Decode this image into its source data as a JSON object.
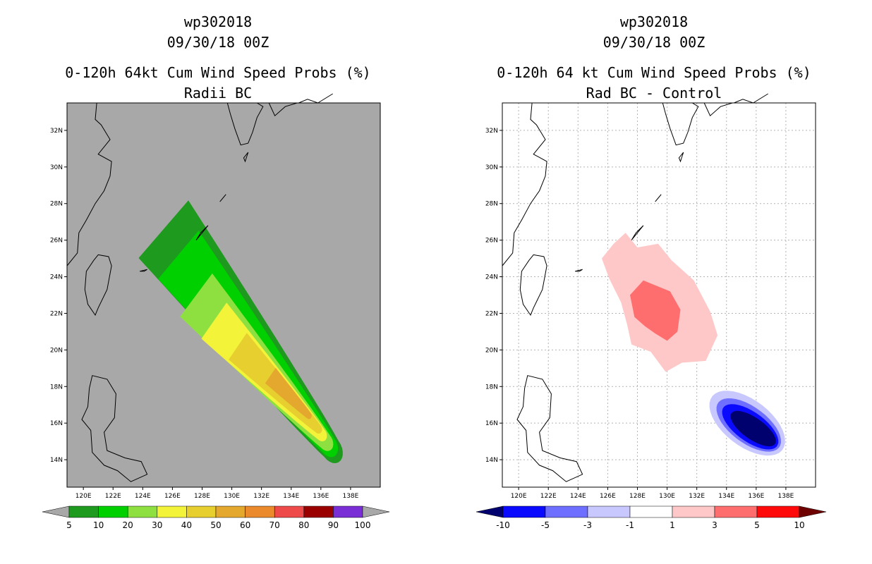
{
  "chart_data": [
    {
      "type": "filled-contour-map",
      "storm_id": "wp302018",
      "datetime": "09/30/18 00Z",
      "title": "0-120h 64kt Cum Wind Speed Probs (%)",
      "subtitle": "Radii BC",
      "units": "%",
      "x_ticks": [
        "120E",
        "122E",
        "124E",
        "126E",
        "128E",
        "130E",
        "132E",
        "134E",
        "136E",
        "138E"
      ],
      "y_ticks": [
        "14N",
        "16N",
        "18N",
        "20N",
        "22N",
        "24N",
        "26N",
        "28N",
        "30N",
        "32N"
      ],
      "lon_range": [
        118.9,
        140
      ],
      "lat_range": [
        12.5,
        33.5
      ],
      "swath_axis": [
        [
          125.5,
          27.0
        ],
        [
          136.9,
          14.6
        ]
      ],
      "contour_levels": [
        5,
        10,
        20,
        30,
        40,
        50,
        60,
        70,
        80,
        90,
        100
      ],
      "level_colors": [
        "#1e9a1e",
        "#00d000",
        "#8ee040",
        "#f3f33a",
        "#e6cf2e",
        "#e4a82e",
        "#ea8a2c",
        "#ee4a4a",
        "#9a0000",
        "#7a2ed6"
      ],
      "contours": [
        {
          "level": 5,
          "color": "#1e9a1e"
        },
        {
          "level": 10,
          "color": "#00d000"
        },
        {
          "level": 20,
          "color": "#8ee040"
        },
        {
          "level": 30,
          "color": "#f3f33a"
        },
        {
          "level": 40,
          "color": "#e6cf2e"
        },
        {
          "level": 50,
          "color": "#e4a82e"
        }
      ],
      "max_probability": 55
    },
    {
      "type": "filled-contour-map",
      "storm_id": "wp302018",
      "datetime": "09/30/18 00Z",
      "title": "0-120h 64 kt Cum Wind Speed Probs (%)",
      "subtitle": "Rad BC - Control",
      "units": "%",
      "x_ticks": [
        "120E",
        "122E",
        "124E",
        "126E",
        "128E",
        "130E",
        "132E",
        "134E",
        "136E",
        "138E"
      ],
      "y_ticks": [
        "14N",
        "16N",
        "18N",
        "20N",
        "22N",
        "24N",
        "26N",
        "28N",
        "30N",
        "32N"
      ],
      "lon_range": [
        118.9,
        140
      ],
      "lat_range": [
        12.5,
        33.5
      ],
      "contour_levels": [
        -10,
        -5,
        -3,
        -1,
        1,
        3,
        5,
        10
      ],
      "level_colors": [
        "#00006e",
        "#0a0aff",
        "#6e6eff",
        "#c8c8ff",
        "#ffffff",
        "#ffc8c8",
        "#ff6e6e",
        "#ff0a0a",
        "#6e0000"
      ],
      "positive_region": {
        "center": [
          129.5,
          22.0
        ],
        "max_diff": 5
      },
      "negative_region": {
        "center": [
          135.5,
          16.0
        ],
        "min_diff": -10
      }
    }
  ],
  "left": {
    "title_line1": "wp302018",
    "title_line2": "09/30/18 00Z",
    "title_line3": "0-120h 64kt Cum Wind Speed Probs (%)",
    "title_line4": "Radii BC",
    "colorbar_labels": [
      "5",
      "10",
      "20",
      "30",
      "40",
      "50",
      "60",
      "70",
      "80",
      "90",
      "100"
    ]
  },
  "right": {
    "title_line1": "wp302018",
    "title_line2": "09/30/18 00Z",
    "title_line3": "0-120h 64 kt Cum Wind Speed Probs (%)",
    "title_line4": "Rad BC - Control",
    "colorbar_labels": [
      "-10",
      "-5",
      "-3",
      "-1",
      "1",
      "3",
      "5",
      "10"
    ]
  },
  "colors": {
    "map_background_left": "#a8a8a8",
    "map_background_right": "#ffffff",
    "grid": "#b4b4b4",
    "land_outline": "#000000"
  }
}
